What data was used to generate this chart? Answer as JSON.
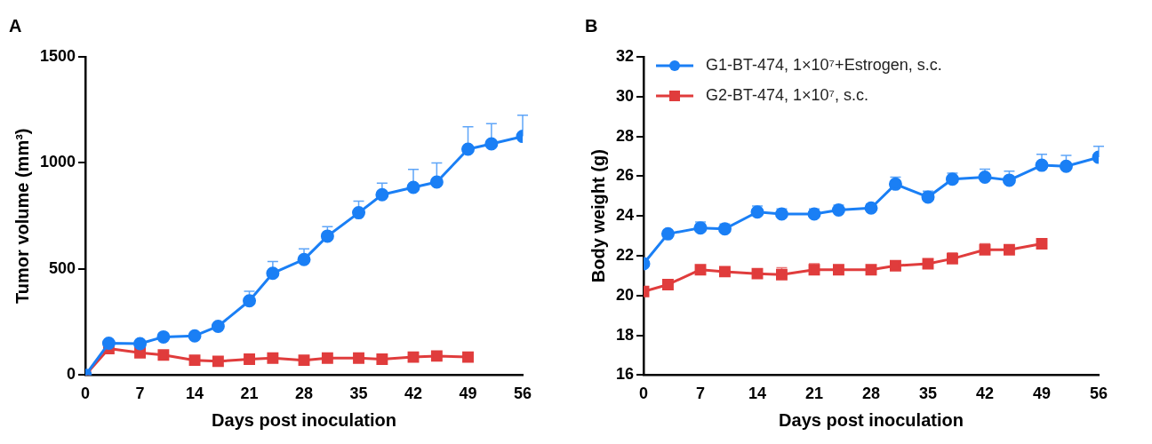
{
  "chart_data": [
    {
      "type": "line",
      "title": "A",
      "xlabel": "Days post inoculation",
      "ylabel": "Tumor volume (mm³)",
      "x": [
        0,
        3,
        7,
        10,
        14,
        17,
        21,
        24,
        28,
        31,
        35,
        38,
        42,
        45,
        49,
        52,
        56
      ],
      "xlim": [
        0,
        56
      ],
      "xticks": [
        0,
        7,
        14,
        21,
        28,
        35,
        42,
        49,
        56
      ],
      "ylim": [
        0,
        1500
      ],
      "yticks": [
        0,
        500,
        1000,
        1500
      ],
      "grid": false,
      "legend": false,
      "series": [
        {
          "color": "#1a7ff5",
          "marker": "circle",
          "values": [
            0,
            150,
            148,
            180,
            185,
            230,
            350,
            480,
            545,
            655,
            765,
            850,
            885,
            910,
            1065,
            1090,
            1125
          ],
          "errors": [
            null,
            null,
            null,
            null,
            null,
            null,
            [
              350,
              395
            ],
            [
              480,
              535
            ],
            [
              545,
              595
            ],
            [
              655,
              700
            ],
            [
              765,
              820
            ],
            [
              850,
              905
            ],
            [
              885,
              970
            ],
            [
              910,
              1000
            ],
            [
              1065,
              1170
            ],
            [
              1090,
              1185
            ],
            [
              1125,
              1225
            ]
          ]
        },
        {
          "color": "#e03c3c",
          "marker": "square",
          "x": [
            0,
            3,
            7,
            10,
            14,
            17,
            21,
            24,
            28,
            31,
            35,
            38,
            42,
            45,
            49
          ],
          "values": [
            0,
            125,
            105,
            95,
            70,
            65,
            75,
            80,
            70,
            80,
            80,
            75,
            85,
            90,
            85
          ]
        }
      ]
    },
    {
      "type": "line",
      "title": "B",
      "xlabel": "Days post inoculation",
      "ylabel": "Body weight (g)",
      "x": [
        0,
        3,
        7,
        10,
        14,
        17,
        21,
        24,
        28,
        31,
        35,
        38,
        42,
        45,
        49,
        52,
        56
      ],
      "xlim": [
        0,
        56
      ],
      "xticks": [
        0,
        7,
        14,
        21,
        28,
        35,
        42,
        49,
        56
      ],
      "ylim": [
        16,
        32
      ],
      "yticks": [
        16,
        18,
        20,
        22,
        24,
        26,
        28,
        30,
        32
      ],
      "grid": false,
      "legend": "top left",
      "series": [
        {
          "name": "G1-BT-474, 1×10⁷+Estrogen, s.c.",
          "color": "#1a7ff5",
          "marker": "circle",
          "values": [
            21.6,
            23.1,
            23.4,
            23.35,
            24.2,
            24.1,
            24.1,
            24.3,
            24.4,
            25.6,
            24.95,
            25.85,
            25.95,
            25.8,
            26.55,
            26.5,
            26.95
          ],
          "errors": [
            null,
            null,
            [
              23.4,
              23.7
            ],
            [
              23.35,
              23.6
            ],
            [
              24.2,
              24.5
            ],
            [
              24.1,
              24.35
            ],
            [
              24.1,
              24.35
            ],
            [
              24.3,
              24.55
            ],
            [
              24.4,
              24.6
            ],
            [
              25.6,
              25.95
            ],
            [
              24.95,
              25.25
            ],
            [
              25.85,
              26.15
            ],
            [
              25.95,
              26.35
            ],
            [
              25.8,
              26.25
            ],
            [
              26.55,
              27.1
            ],
            [
              26.5,
              27.05
            ],
            [
              26.95,
              27.5
            ]
          ]
        },
        {
          "name": "G2-BT-474, 1×10⁷, s.c.",
          "color": "#e03c3c",
          "marker": "square",
          "x": [
            0,
            3,
            7,
            10,
            14,
            17,
            21,
            24,
            28,
            31,
            35,
            38,
            42,
            45,
            49
          ],
          "values": [
            20.2,
            20.55,
            21.3,
            21.2,
            21.1,
            21.05,
            21.3,
            21.3,
            21.3,
            21.5,
            21.6,
            21.85,
            22.3,
            22.3,
            22.6
          ],
          "errors": [
            null,
            null,
            null,
            null,
            null,
            [
              21.05,
              21.4
            ],
            [
              21.3,
              21.6
            ],
            null,
            null,
            null,
            null,
            [
              21.85,
              22.15
            ],
            [
              22.3,
              22.6
            ],
            null,
            null
          ]
        }
      ]
    }
  ]
}
